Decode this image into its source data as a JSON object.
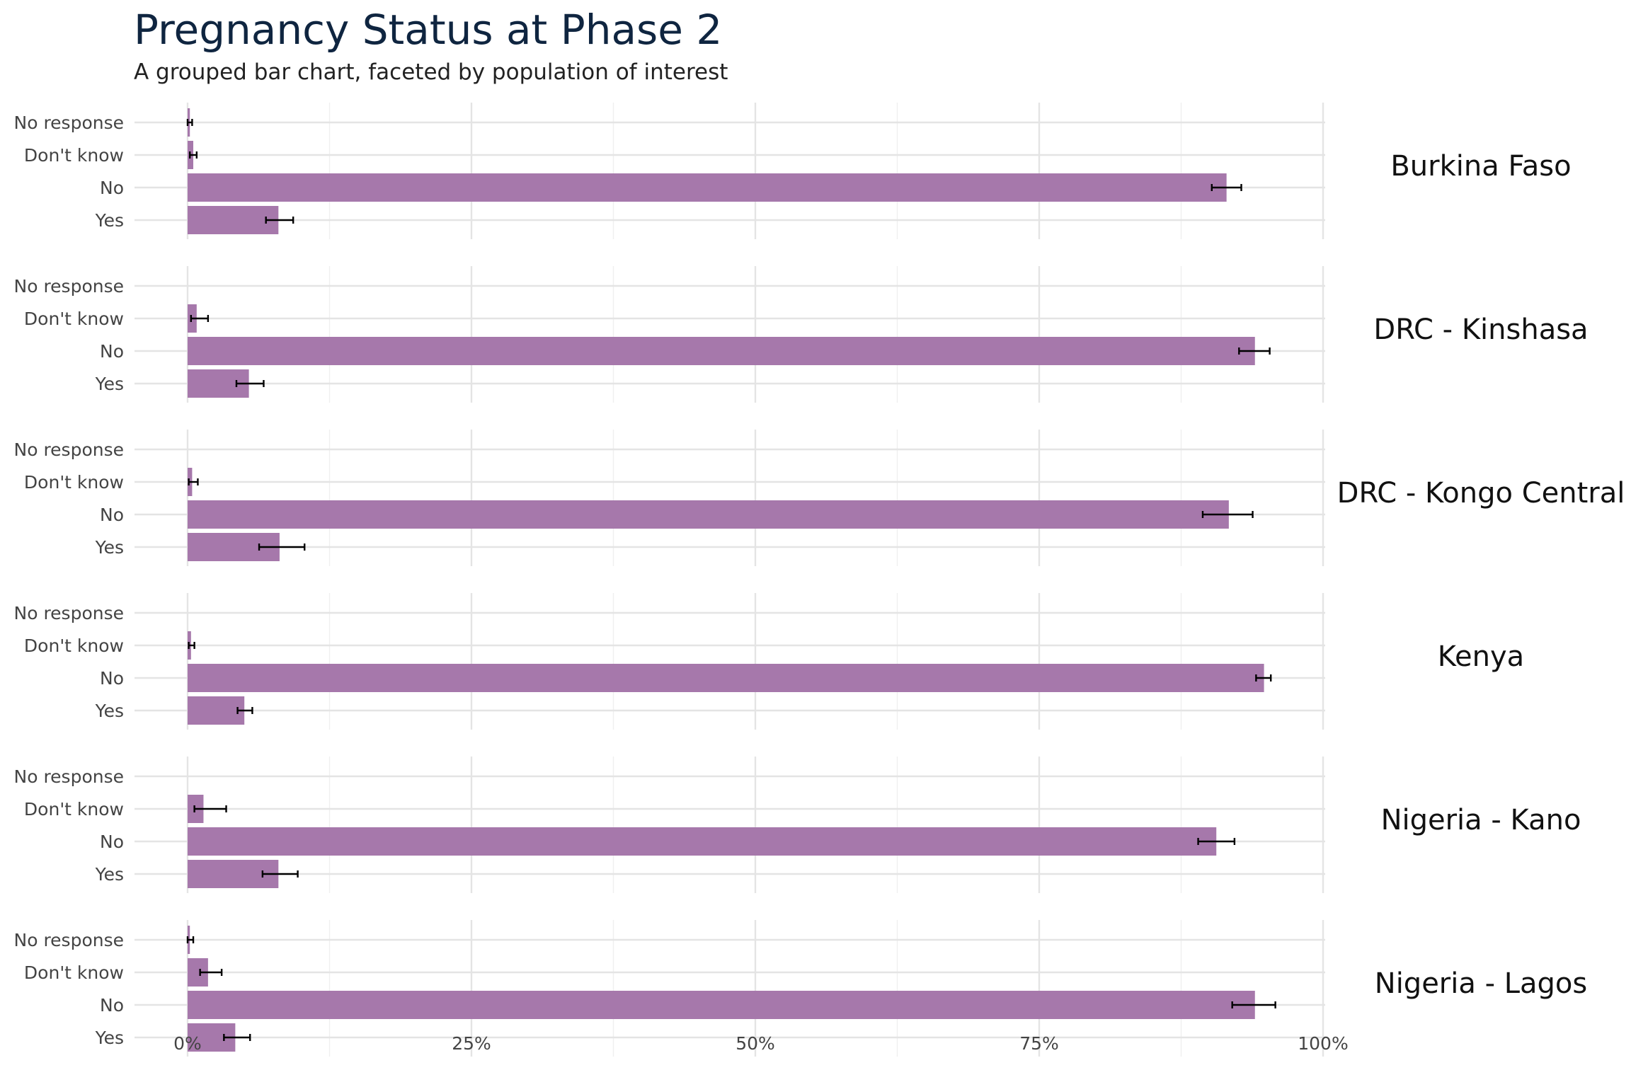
{
  "chart_data": {
    "type": "bar",
    "orientation": "horizontal",
    "title": "Pregnancy Status at Phase 2",
    "subtitle": "A grouped bar chart, faceted by population of interest",
    "xlabel": "",
    "ylabel": "",
    "xlim": [
      0,
      100
    ],
    "x_ticks": [
      "0%",
      "25%",
      "50%",
      "75%",
      "100%"
    ],
    "categories": [
      "No response",
      "Don't know",
      "No",
      "Yes"
    ],
    "bar_color": "#a678ab",
    "grid": true,
    "facets": [
      {
        "name": "Burkina Faso",
        "values": [
          0.2,
          0.5,
          91.5,
          8.0
        ],
        "ci_low": [
          0.0,
          0.2,
          90.2,
          6.9
        ],
        "ci_high": [
          0.4,
          0.8,
          92.8,
          9.3
        ]
      },
      {
        "name": "DRC - Kinshasa",
        "values": [
          0.0,
          0.8,
          94.0,
          5.4
        ],
        "ci_low": [
          0.0,
          0.3,
          92.6,
          4.3
        ],
        "ci_high": [
          0.0,
          1.8,
          95.3,
          6.7
        ]
      },
      {
        "name": "DRC - Kongo Central",
        "values": [
          0.0,
          0.4,
          91.7,
          8.1
        ],
        "ci_low": [
          0.0,
          0.1,
          89.4,
          6.3
        ],
        "ci_high": [
          0.0,
          0.9,
          93.8,
          10.3
        ]
      },
      {
        "name": "Kenya",
        "values": [
          0.0,
          0.3,
          94.8,
          5.0
        ],
        "ci_low": [
          0.0,
          0.1,
          94.1,
          4.4
        ],
        "ci_high": [
          0.0,
          0.6,
          95.4,
          5.7
        ]
      },
      {
        "name": "Nigeria - Kano",
        "values": [
          0.0,
          1.4,
          90.6,
          8.0
        ],
        "ci_low": [
          0.0,
          0.6,
          89.0,
          6.6
        ],
        "ci_high": [
          0.0,
          3.4,
          92.2,
          9.7
        ]
      },
      {
        "name": "Nigeria - Lagos",
        "values": [
          0.2,
          1.8,
          94.0,
          4.2
        ],
        "ci_low": [
          0.0,
          1.1,
          92.0,
          3.2
        ],
        "ci_high": [
          0.5,
          3.0,
          95.8,
          5.5
        ]
      }
    ]
  }
}
